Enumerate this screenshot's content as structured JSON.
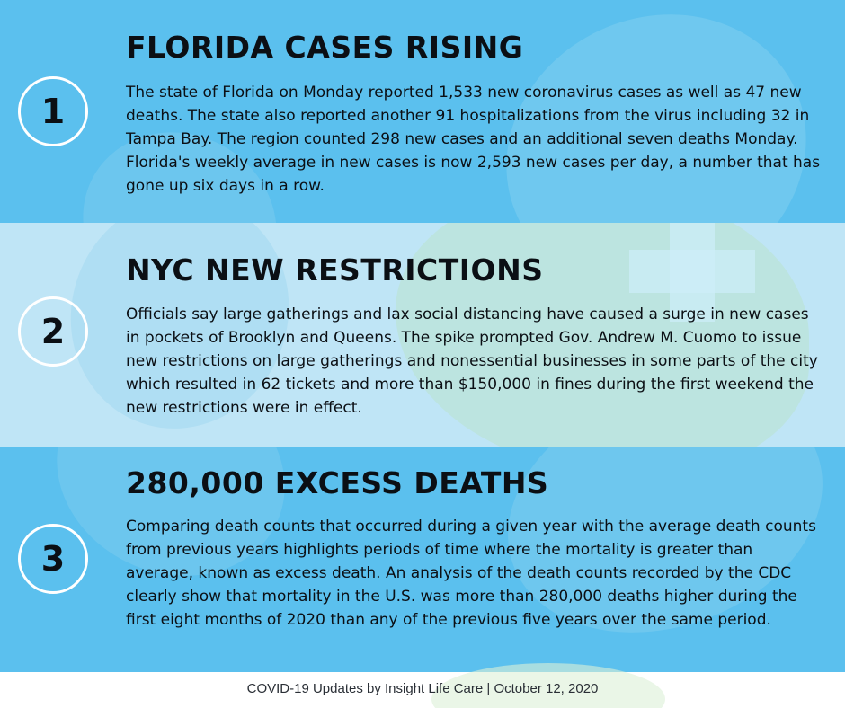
{
  "items": [
    {
      "number": "1",
      "title": "FLORIDA CASES RISING",
      "body": "The state of Florida on Monday reported 1,533 new coronavirus cases as well as 47 new deaths. The state also reported another 91 hospitalizations from the virus including 32 in Tampa Bay. The region counted 298 new cases and an additional seven deaths Monday. Florida's weekly average in new cases is now 2,593 new cases per day, a number that has gone up six days in a row."
    },
    {
      "number": "2",
      "title": "NYC NEW RESTRICTIONS",
      "body": "Officials say large gatherings and lax social distancing have caused a surge in new cases in pockets of Brooklyn and Queens. The spike prompted Gov. Andrew M. Cuomo to issue new restrictions on large gatherings and nonessential businesses in some parts of the city which resulted in 62 tickets and more than $150,000 in fines during the first weekend the new restrictions were in effect."
    },
    {
      "number": "3",
      "title": "280,000 EXCESS DEATHS",
      "body": "Comparing death counts that occurred during a given year with the average death counts from previous years highlights periods of time where the mortality is greater than average, known as excess death. An analysis of the death counts recorded by the CDC clearly show that mortality in the U.S. was more than 280,000 deaths higher during the first eight months of 2020 than any of the previous five years over the same period."
    }
  ],
  "footer": {
    "text": "COVID-19 Updates by Insight Life Care | October 12, 2020"
  },
  "colors": {
    "band_primary": "#5bc0ee",
    "band_light": "#bfe5f6",
    "text": "#0b0f14",
    "circle_border": "#ffffff"
  }
}
